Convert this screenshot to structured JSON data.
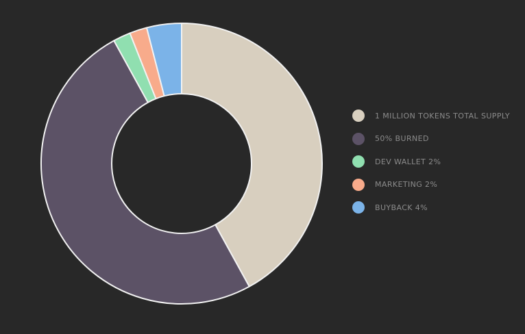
{
  "chart_data": {
    "type": "pie",
    "donut": true,
    "legend_position": "right",
    "slices": [
      {
        "label": "1 MILLION TOKENS TOTAL SUPPLY",
        "value": 42,
        "color": "#d8cfbf"
      },
      {
        "label": "50% BURNED",
        "value": 50,
        "color": "#5c5266"
      },
      {
        "label": "DEV WALLET 2%",
        "value": 2,
        "color": "#90dfb0"
      },
      {
        "label": "MARKETING 2%",
        "value": 2,
        "color": "#f8ab8b"
      },
      {
        "label": "BUYBACK 4%",
        "value": 4,
        "color": "#7bb3e8"
      }
    ]
  }
}
